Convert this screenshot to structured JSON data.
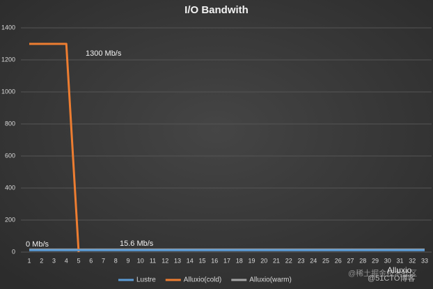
{
  "chart_data": {
    "type": "line",
    "title": "I/O Bandwith",
    "categories": [
      "1",
      "2",
      "3",
      "4",
      "5",
      "6",
      "7",
      "8",
      "9",
      "10",
      "11",
      "12",
      "13",
      "14",
      "15",
      "16",
      "17",
      "18",
      "19",
      "20",
      "21",
      "22",
      "23",
      "24",
      "25",
      "26",
      "27",
      "28",
      "29",
      "30",
      "31",
      "32",
      "33"
    ],
    "series": [
      {
        "name": "Lustre",
        "color": "#5b9bd5",
        "values": [
          12,
          12,
          12,
          12,
          12,
          12,
          12,
          12,
          12,
          12,
          12,
          12,
          12,
          12,
          12,
          12,
          12,
          12,
          12,
          12,
          12,
          12,
          12,
          12,
          12,
          12,
          12,
          12,
          12,
          12,
          12,
          12,
          12
        ]
      },
      {
        "name": "Alluxio(cold)",
        "color": "#ed7d31",
        "values": [
          1300,
          1300,
          1300,
          1300,
          0,
          null,
          null,
          null,
          null,
          null,
          null,
          null,
          null,
          null,
          null,
          null,
          null,
          null,
          null,
          null,
          null,
          null,
          null,
          null,
          null,
          null,
          null,
          null,
          null,
          null,
          null,
          null,
          null
        ]
      },
      {
        "name": "Alluxio(warm)",
        "color": "#a5a5a5",
        "values": [
          15.6,
          15.6,
          15.6,
          15.6,
          15.6,
          15.6,
          15.6,
          15.6,
          15.6,
          15.6,
          15.6,
          15.6,
          15.6,
          15.6,
          15.6,
          15.6,
          15.6,
          15.6,
          15.6,
          15.6,
          15.6,
          15.6,
          15.6,
          15.6,
          15.6,
          15.6,
          15.6,
          15.6,
          15.6,
          15.6,
          15.6,
          15.6,
          15.6
        ]
      }
    ],
    "ylim": [
      0,
      1400
    ],
    "yticks": [
      0,
      200,
      400,
      600,
      800,
      1000,
      1200,
      1400
    ],
    "grid": true,
    "annotations": [
      "1300 Mb/s",
      "0 Mb/s",
      "15.6 Mb/s"
    ],
    "watermark": [
      "@稀土掘金技术社区",
      "@51CTO博客",
      "Alluxio"
    ],
    "legend": "bottom"
  }
}
